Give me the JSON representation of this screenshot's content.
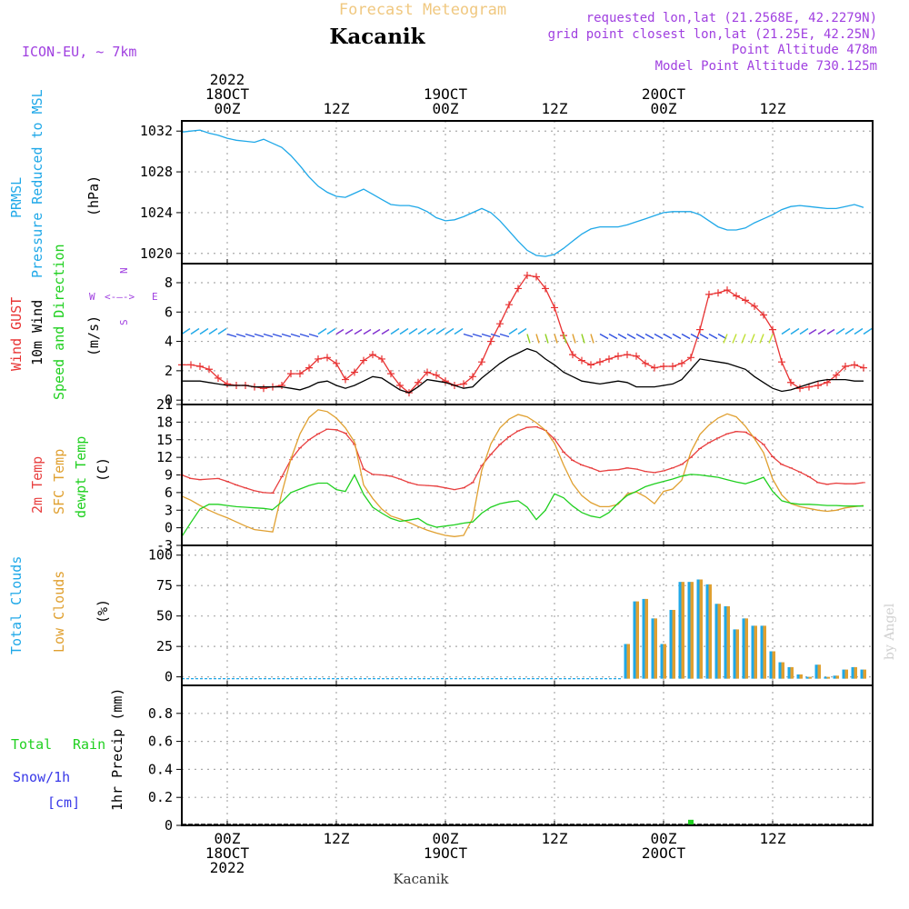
{
  "header": {
    "title": "Forecast Meteogram",
    "location": "Kacanik",
    "model": "ICON-EU, ~ 7km",
    "requested": "requested lon,lat (21.2568E, 42.2279N)",
    "gridpoint": "grid point closest lon,lat (21.25E, 42.25N)",
    "point_alt": "Point Altitude 478m",
    "model_alt": "Model Point Altitude 730.125m",
    "footer": "Kacanik",
    "credit": "by Angel"
  },
  "time_axis": {
    "top_labels": [
      {
        "h": 0,
        "lines": [
          "2022",
          "18OCT",
          "00Z"
        ]
      },
      {
        "h": 12,
        "lines": [
          "12Z"
        ]
      },
      {
        "h": 24,
        "lines": [
          "19OCT",
          "00Z"
        ]
      },
      {
        "h": 36,
        "lines": [
          "12Z"
        ]
      },
      {
        "h": 48,
        "lines": [
          "20OCT",
          "00Z"
        ]
      },
      {
        "h": 60,
        "lines": [
          "12Z"
        ]
      }
    ],
    "bottom_labels": [
      {
        "h": 0,
        "lines": [
          "00Z",
          "18OCT",
          "2022"
        ]
      },
      {
        "h": 12,
        "lines": [
          "12Z"
        ]
      },
      {
        "h": 24,
        "lines": [
          "00Z",
          "19OCT"
        ]
      },
      {
        "h": 36,
        "lines": [
          "12Z"
        ]
      },
      {
        "h": 48,
        "lines": [
          "00Z",
          "20OCT"
        ]
      },
      {
        "h": 60,
        "lines": [
          "12Z"
        ]
      }
    ],
    "start_hour": -5,
    "end_hour": 71
  },
  "colors": {
    "pressure": "#1fa8e8",
    "gust": "#e83232",
    "wind": "#000000",
    "temp": "#e84040",
    "sfc_temp": "#e0a030",
    "dewpt": "#20d020",
    "total_cloud": "#1fa8e8",
    "low_cloud": "#e0a030",
    "rain": "#20d020",
    "snow": "#3838e8",
    "violet": "#a040e0",
    "title": "#f0c880"
  },
  "chart_data": [
    {
      "type": "line",
      "panel": "pressure",
      "labels": [
        "PRMSL",
        "Pressure Reduced to MSL",
        "(hPa)"
      ],
      "ylim": [
        1019,
        1033
      ],
      "yticks": [
        1020,
        1024,
        1028,
        1032
      ],
      "x": [
        -5,
        -4,
        -3,
        -2,
        -1,
        0,
        1,
        2,
        3,
        4,
        5,
        6,
        7,
        8,
        9,
        10,
        11,
        12,
        13,
        14,
        15,
        16,
        17,
        18,
        19,
        20,
        21,
        22,
        23,
        24,
        25,
        26,
        27,
        28,
        29,
        30,
        31,
        32,
        33,
        34,
        35,
        36,
        37,
        38,
        39,
        40,
        41,
        42,
        43,
        44,
        45,
        46,
        47,
        48,
        49,
        50,
        51,
        52,
        53,
        54,
        55,
        56,
        57,
        58,
        59,
        60,
        61,
        62,
        63,
        64,
        65,
        66,
        67,
        68,
        69,
        70
      ],
      "series": [
        {
          "name": "Pressure",
          "values": [
            1031.9,
            1032.0,
            1032.1,
            1031.8,
            1031.6,
            1031.3,
            1031.1,
            1031.0,
            1030.9,
            1031.2,
            1030.8,
            1030.4,
            1029.6,
            1028.6,
            1027.5,
            1026.6,
            1026.0,
            1025.6,
            1025.5,
            1025.9,
            1026.3,
            1025.8,
            1025.3,
            1024.8,
            1024.7,
            1024.7,
            1024.5,
            1024.1,
            1023.5,
            1023.2,
            1023.3,
            1023.6,
            1024.0,
            1024.4,
            1024.0,
            1023.2,
            1022.2,
            1021.2,
            1020.3,
            1019.8,
            1019.7,
            1019.9,
            1020.5,
            1021.2,
            1021.9,
            1022.4,
            1022.6,
            1022.6,
            1022.6,
            1022.8,
            1023.1,
            1023.4,
            1023.7,
            1024.0,
            1024.1,
            1024.1,
            1024.1,
            1023.8,
            1023.2,
            1022.6,
            1022.3,
            1022.3,
            1022.5,
            1023.0,
            1023.4,
            1023.8,
            1024.3,
            1024.6,
            1024.7,
            1024.6,
            1024.5,
            1024.4,
            1024.4,
            1024.6,
            1024.8,
            1024.5
          ]
        }
      ]
    },
    {
      "type": "line",
      "panel": "wind",
      "labels": [
        "Wind GUST",
        "10m Wind",
        "Speed and Direction",
        "(m/s)"
      ],
      "compass": {
        "n": "N",
        "s": "S",
        "w": "W",
        "e": "E"
      },
      "ylim": [
        -0.3,
        9.3
      ],
      "yticks": [
        0,
        2,
        4,
        6,
        8
      ],
      "x": [
        -5,
        -4,
        -3,
        -2,
        -1,
        0,
        1,
        2,
        3,
        4,
        5,
        6,
        7,
        8,
        9,
        10,
        11,
        12,
        13,
        14,
        15,
        16,
        17,
        18,
        19,
        20,
        21,
        22,
        23,
        24,
        25,
        26,
        27,
        28,
        29,
        30,
        31,
        32,
        33,
        34,
        35,
        36,
        37,
        38,
        39,
        40,
        41,
        42,
        43,
        44,
        45,
        46,
        47,
        48,
        49,
        50,
        51,
        52,
        53,
        54,
        55,
        56,
        57,
        58,
        59,
        60,
        61,
        62,
        63,
        64,
        65,
        66,
        67,
        68,
        69,
        70
      ],
      "series": [
        {
          "name": "Gust",
          "values": [
            2.4,
            2.4,
            2.3,
            2.1,
            1.5,
            1.1,
            1.0,
            1.0,
            0.9,
            0.8,
            0.9,
            1.0,
            1.8,
            1.8,
            2.2,
            2.8,
            2.9,
            2.5,
            1.4,
            1.9,
            2.7,
            3.1,
            2.8,
            1.8,
            1.0,
            0.5,
            1.2,
            1.9,
            1.7,
            1.3,
            1.0,
            1.1,
            1.6,
            2.6,
            4.0,
            5.2,
            6.5,
            7.6,
            8.5,
            8.4,
            7.6,
            6.3,
            4.4,
            3.1,
            2.7,
            2.4,
            2.6,
            2.8,
            3.0,
            3.1,
            3.0,
            2.5,
            2.2,
            2.3,
            2.3,
            2.5,
            2.9,
            4.8,
            7.2,
            7.3,
            7.5,
            7.1,
            6.8,
            6.4,
            5.8,
            4.8,
            2.6,
            1.2,
            0.8,
            0.9,
            1.0,
            1.2,
            1.7,
            2.3,
            2.4,
            2.2
          ]
        },
        {
          "name": "Wind",
          "values": [
            1.3,
            1.3,
            1.3,
            1.2,
            1.1,
            1.0,
            1.0,
            1.0,
            0.9,
            0.9,
            0.9,
            0.9,
            0.8,
            0.7,
            0.9,
            1.2,
            1.3,
            1.0,
            0.8,
            1.0,
            1.3,
            1.6,
            1.5,
            1.1,
            0.7,
            0.5,
            0.9,
            1.4,
            1.3,
            1.2,
            1.0,
            0.8,
            0.9,
            1.5,
            2.0,
            2.5,
            2.9,
            3.2,
            3.5,
            3.3,
            2.8,
            2.4,
            1.9,
            1.6,
            1.3,
            1.2,
            1.1,
            1.2,
            1.3,
            1.2,
            0.9,
            0.9,
            0.9,
            1.0,
            1.1,
            1.4,
            2.1,
            2.8,
            2.7,
            2.6,
            2.5,
            2.3,
            2.1,
            1.6,
            1.2,
            0.8,
            0.6,
            0.7,
            0.9,
            1.1,
            1.3,
            1.4,
            1.4,
            1.4,
            1.3,
            1.3
          ]
        }
      ]
    },
    {
      "type": "line",
      "panel": "temperature",
      "labels": [
        "2m Temp",
        "SFC Temp",
        "dewpt Temp",
        "(C)"
      ],
      "ylim": [
        -3,
        21
      ],
      "yticks": [
        -3,
        0,
        3,
        6,
        9,
        12,
        15,
        18,
        21
      ],
      "x": [
        -5,
        -4,
        -3,
        -2,
        -1,
        0,
        1,
        2,
        3,
        4,
        5,
        6,
        7,
        8,
        9,
        10,
        11,
        12,
        13,
        14,
        15,
        16,
        17,
        18,
        19,
        20,
        21,
        22,
        23,
        24,
        25,
        26,
        27,
        28,
        29,
        30,
        31,
        32,
        33,
        34,
        35,
        36,
        37,
        38,
        39,
        40,
        41,
        42,
        43,
        44,
        45,
        46,
        47,
        48,
        49,
        50,
        51,
        52,
        53,
        54,
        55,
        56,
        57,
        58,
        59,
        60,
        61,
        62,
        63,
        64,
        65,
        66,
        67,
        68,
        69,
        70
      ],
      "series": [
        {
          "name": "2m Temp",
          "values": [
            9.0,
            8.4,
            8.2,
            8.3,
            8.4,
            7.9,
            7.3,
            6.8,
            6.3,
            6.0,
            5.9,
            8.7,
            11.6,
            13.6,
            15.0,
            16.0,
            16.8,
            16.7,
            16.1,
            14.2,
            10.0,
            9.1,
            9.0,
            8.8,
            8.3,
            7.7,
            7.3,
            7.2,
            7.1,
            6.8,
            6.5,
            6.8,
            7.7,
            10.6,
            12.5,
            14.2,
            15.5,
            16.5,
            17.1,
            17.2,
            16.6,
            15.1,
            12.9,
            11.5,
            10.7,
            10.2,
            9.6,
            9.8,
            9.9,
            10.2,
            10.0,
            9.6,
            9.4,
            9.7,
            10.2,
            10.8,
            12.0,
            13.5,
            14.5,
            15.3,
            16.0,
            16.4,
            16.3,
            15.4,
            14.2,
            12.1,
            10.8,
            10.2,
            9.5,
            8.7,
            7.7,
            7.4,
            7.6,
            7.5,
            7.5,
            7.7
          ]
        },
        {
          "name": "SFC Temp",
          "values": [
            5.4,
            4.7,
            3.8,
            3.0,
            2.3,
            1.7,
            1.0,
            0.3,
            -0.3,
            -0.5,
            -0.7,
            5.9,
            11.7,
            16.0,
            18.8,
            20.1,
            19.8,
            18.7,
            17.0,
            14.6,
            7.3,
            5.0,
            3.2,
            2.0,
            1.5,
            0.9,
            0.2,
            -0.4,
            -0.9,
            -1.3,
            -1.5,
            -1.3,
            1.6,
            9.8,
            14.3,
            17.0,
            18.5,
            19.3,
            18.9,
            17.9,
            16.6,
            14.4,
            10.7,
            7.5,
            5.5,
            4.3,
            3.6,
            3.6,
            4.0,
            5.8,
            6.1,
            5.3,
            4.1,
            6.2,
            6.6,
            8.1,
            12.9,
            15.9,
            17.5,
            18.7,
            19.4,
            18.9,
            17.3,
            15.2,
            12.8,
            8.3,
            5.6,
            4.1,
            3.6,
            3.3,
            3.0,
            2.8,
            3.0,
            3.4,
            3.6,
            3.8
          ]
        },
        {
          "name": "dewpt Temp",
          "values": [
            -1.5,
            0.9,
            3.2,
            4.0,
            4.0,
            3.8,
            3.6,
            3.5,
            3.4,
            3.3,
            3.1,
            4.4,
            6.0,
            6.6,
            7.2,
            7.6,
            7.6,
            6.5,
            6.2,
            9.0,
            5.7,
            3.5,
            2.5,
            1.6,
            1.1,
            1.3,
            1.6,
            0.6,
            0.1,
            0.3,
            0.5,
            0.8,
            1.0,
            2.5,
            3.5,
            4.1,
            4.4,
            4.6,
            3.5,
            1.4,
            3.0,
            5.8,
            5.1,
            3.7,
            2.6,
            2.0,
            1.7,
            2.6,
            4.2,
            5.5,
            6.2,
            7.0,
            7.5,
            7.9,
            8.3,
            8.8,
            9.1,
            9.0,
            8.8,
            8.6,
            8.2,
            7.8,
            7.5,
            8.0,
            8.6,
            6.2,
            4.6,
            4.2,
            4.0,
            4.0,
            3.9,
            3.8,
            3.8,
            3.7,
            3.7,
            3.7
          ]
        }
      ]
    },
    {
      "type": "bar",
      "panel": "clouds",
      "labels": [
        "Total Clouds",
        "Low Clouds",
        "(%)"
      ],
      "ylim": [
        -7,
        108
      ],
      "yticks": [
        0,
        25,
        50,
        75,
        100
      ],
      "x": [
        44,
        45,
        46,
        47,
        48,
        49,
        50,
        51,
        52,
        53,
        54,
        55,
        56,
        57,
        58,
        59,
        60,
        61,
        62,
        63,
        64,
        65,
        66,
        67,
        68,
        69,
        70
      ],
      "series": [
        {
          "name": "Total Clouds",
          "values": [
            27,
            62,
            64,
            48,
            27,
            55,
            78,
            78,
            80,
            76,
            60,
            58,
            39,
            48,
            42,
            42,
            21,
            12,
            8,
            2,
            0,
            10,
            0,
            1,
            6,
            8,
            6
          ]
        },
        {
          "name": "Low Clouds",
          "values": [
            27,
            62,
            64,
            48,
            27,
            55,
            78,
            78,
            80,
            76,
            60,
            58,
            39,
            48,
            42,
            42,
            21,
            12,
            8,
            2,
            0,
            10,
            0,
            1,
            6,
            8,
            6
          ]
        }
      ]
    },
    {
      "type": "bar",
      "panel": "precip",
      "labels": [
        "1hr Precip (mm)",
        "Total",
        "Rain",
        "Snow/1h",
        "[cm]"
      ],
      "ylim": [
        0,
        1.0
      ],
      "yticks": [
        0,
        0.2,
        0.4,
        0.6,
        0.8
      ],
      "x": [
        51
      ],
      "series": [
        {
          "name": "Rain",
          "values": [
            0.04
          ]
        },
        {
          "name": "Snow",
          "values": [
            0
          ]
        }
      ]
    }
  ]
}
